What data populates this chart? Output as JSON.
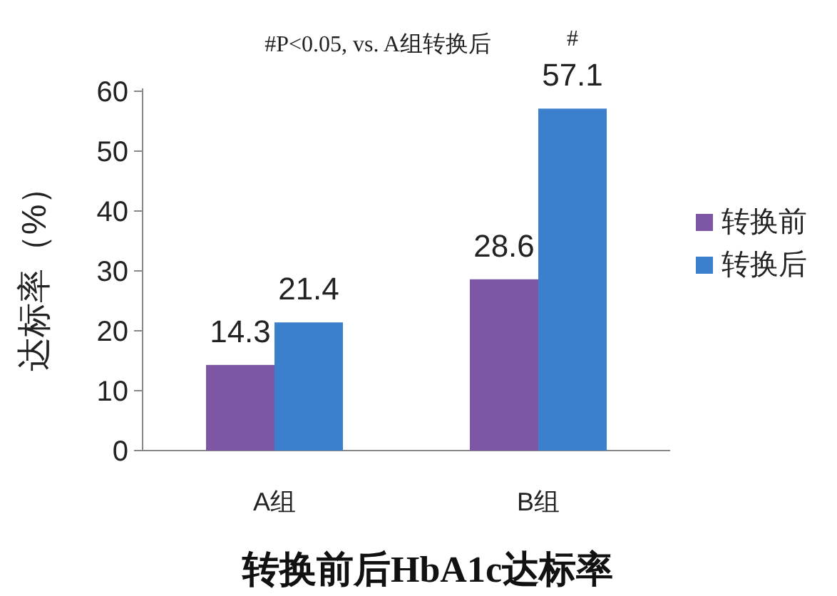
{
  "chart_data": {
    "type": "bar",
    "title": "转换前后HbA1c达标率",
    "ylabel": "达标率（%）",
    "categories": [
      "A组",
      "B组"
    ],
    "series": [
      {
        "name": "转换前",
        "color": "#7d56a6",
        "values": [
          14.3,
          28.6
        ]
      },
      {
        "name": "转换后",
        "color": "#3b80cc",
        "values": [
          21.4,
          57.1
        ]
      }
    ],
    "ylim": [
      0,
      60
    ],
    "yticks": [
      0,
      10,
      20,
      30,
      40,
      50,
      60
    ],
    "data_labels": true,
    "legend": "right",
    "annotations": [
      "#P<0.05, vs. A组转换后",
      {
        "text": "#",
        "x": "B组",
        "y": 57.1
      }
    ]
  }
}
